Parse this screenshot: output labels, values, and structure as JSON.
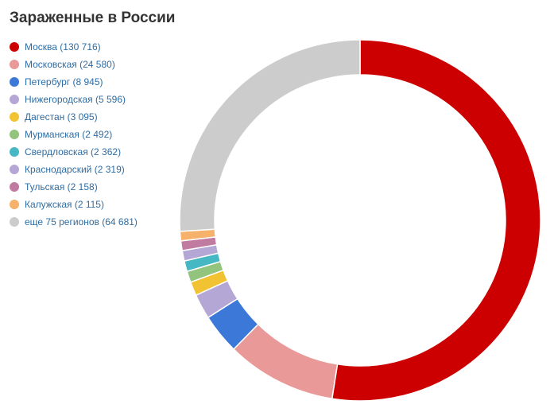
{
  "chart_data": {
    "type": "pie",
    "title": "Зараженные в России",
    "legend_position": "top-left",
    "slices": [
      {
        "label": "Москва",
        "value": 130716,
        "display": "Москва (130 716)",
        "color": "#cc0000"
      },
      {
        "label": "Московская",
        "value": 24580,
        "display": "Московская (24 580)",
        "color": "#ea9999"
      },
      {
        "label": "Петербург",
        "value": 8945,
        "display": "Петербург (8 945)",
        "color": "#3c78d8"
      },
      {
        "label": "Нижегородская",
        "value": 5596,
        "display": "Нижегородская (5 596)",
        "color": "#b4a7d6"
      },
      {
        "label": "Дагестан",
        "value": 3095,
        "display": "Дагестан (3 095)",
        "color": "#f1c232"
      },
      {
        "label": "Мурманская",
        "value": 2492,
        "display": "Мурманская (2 492)",
        "color": "#93c47d"
      },
      {
        "label": "Свердловская",
        "value": 2362,
        "display": "Свердловская (2 362)",
        "color": "#45b8c4"
      },
      {
        "label": "Краснодарский",
        "value": 2319,
        "display": "Краснодарский (2 319)",
        "color": "#b4a7d6"
      },
      {
        "label": "Тульская",
        "value": 2158,
        "display": "Тульская (2 158)",
        "color": "#c27ba0"
      },
      {
        "label": "Калужская",
        "value": 2115,
        "display": "Калужская (2 115)",
        "color": "#f6b26b"
      },
      {
        "label": "еще 75 регионов",
        "value": 64681,
        "display": "еще 75 регионов (64 681)",
        "color": "#cccccc"
      }
    ]
  }
}
